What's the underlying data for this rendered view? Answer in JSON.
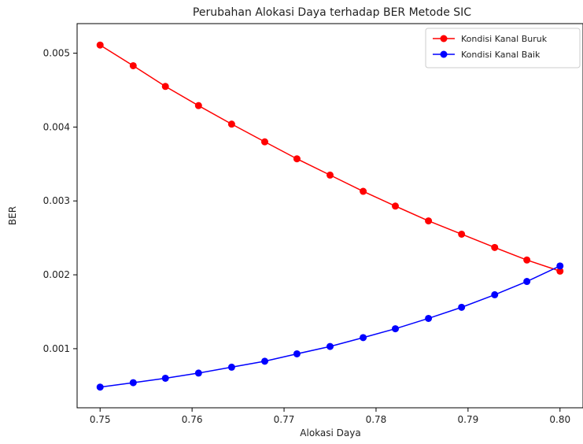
{
  "chart_data": {
    "type": "line",
    "title": "Perubahan Alokasi Daya terhadap BER Metode SIC",
    "xlabel": "Alokasi Daya",
    "ylabel": "BER",
    "xlim": [
      0.7475,
      0.8025
    ],
    "ylim": [
      0.0002,
      0.0054
    ],
    "xticks": [
      0.75,
      0.76,
      0.77,
      0.78,
      0.79,
      0.8
    ],
    "xtick_labels": [
      "0.75",
      "0.76",
      "0.77",
      "0.78",
      "0.79",
      "0.80"
    ],
    "yticks": [
      0.001,
      0.002,
      0.003,
      0.004,
      0.005
    ],
    "ytick_labels": [
      "0.001",
      "0.002",
      "0.003",
      "0.004",
      "0.005"
    ],
    "grid": false,
    "legend_position": "top-right",
    "x": [
      0.75,
      0.7536,
      0.7571,
      0.7607,
      0.7643,
      0.7679,
      0.7714,
      0.775,
      0.7786,
      0.7821,
      0.7857,
      0.7893,
      0.7929,
      0.7964,
      0.8
    ],
    "series": [
      {
        "name": "Kondisi Kanal Buruk",
        "color": "#ff0000",
        "values": [
          0.00511,
          0.00483,
          0.00455,
          0.00429,
          0.00404,
          0.0038,
          0.00357,
          0.00335,
          0.00313,
          0.00293,
          0.00273,
          0.00255,
          0.00237,
          0.0022,
          0.00205
        ]
      },
      {
        "name": "Kondisi Kanal Baik",
        "color": "#0000ff",
        "values": [
          0.00048,
          0.00054,
          0.0006,
          0.00067,
          0.00075,
          0.00083,
          0.00093,
          0.00103,
          0.00115,
          0.00127,
          0.00141,
          0.00156,
          0.00173,
          0.00191,
          0.00212
        ]
      }
    ]
  }
}
